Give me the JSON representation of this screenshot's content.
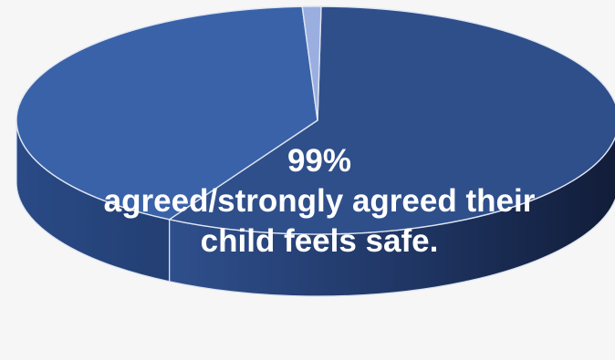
{
  "chart_data": {
    "type": "pie",
    "style": "3d",
    "title": "",
    "slices": [
      {
        "name": "",
        "value": 58,
        "color": "#2f4f8b"
      },
      {
        "name": "",
        "value": 41,
        "color": "#3a62a8"
      },
      {
        "name": "",
        "value": 1,
        "color": "#9aaee0"
      }
    ],
    "annotation": {
      "percent": "99%",
      "line1": "agreed/strongly agreed their",
      "line2": "child feels safe."
    }
  }
}
